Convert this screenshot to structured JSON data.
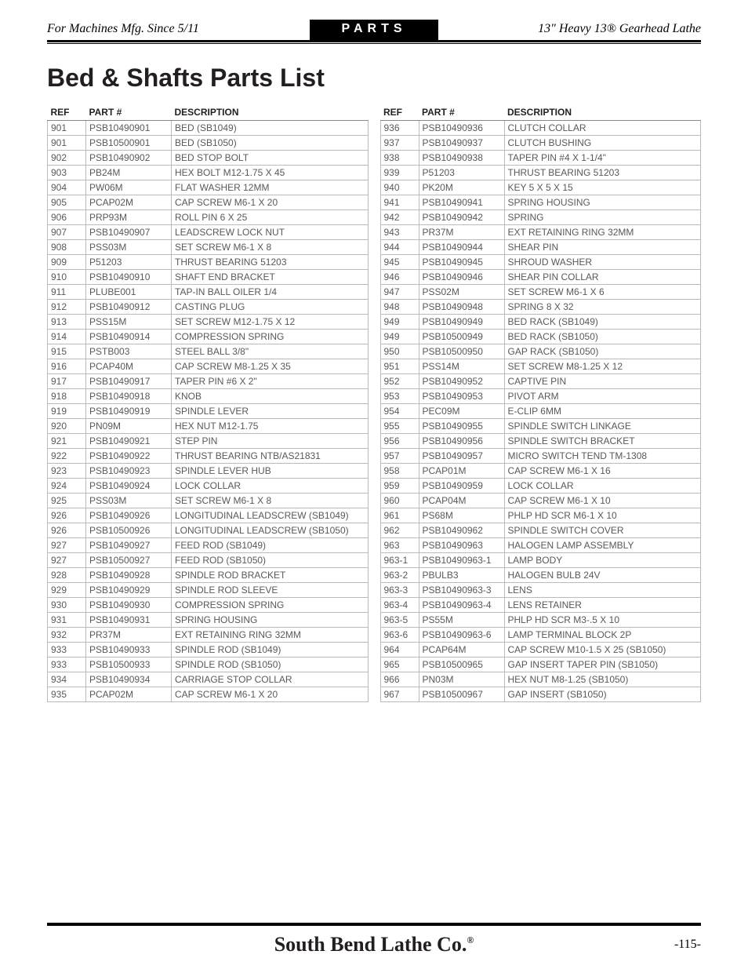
{
  "header": {
    "left": "For Machines Mfg. Since 5/11",
    "center": "PARTS",
    "right": "13\" Heavy 13® Gearhead Lathe"
  },
  "title": "Bed & Shafts Parts List",
  "columns": {
    "ref": "REF",
    "part": "PART #",
    "desc": "DESCRIPTION"
  },
  "left_table": [
    {
      "ref": "901",
      "part": "PSB10490901",
      "desc": "BED (SB1049)"
    },
    {
      "ref": "901",
      "part": "PSB10500901",
      "desc": "BED (SB1050)"
    },
    {
      "ref": "902",
      "part": "PSB10490902",
      "desc": "BED STOP BOLT"
    },
    {
      "ref": "903",
      "part": "PB24M",
      "desc": "HEX BOLT M12-1.75 X 45"
    },
    {
      "ref": "904",
      "part": "PW06M",
      "desc": "FLAT WASHER 12MM"
    },
    {
      "ref": "905",
      "part": "PCAP02M",
      "desc": "CAP SCREW M6-1 X 20"
    },
    {
      "ref": "906",
      "part": "PRP93M",
      "desc": "ROLL PIN 6 X 25"
    },
    {
      "ref": "907",
      "part": "PSB10490907",
      "desc": "LEADSCREW LOCK NUT"
    },
    {
      "ref": "908",
      "part": "PSS03M",
      "desc": "SET SCREW M6-1 X 8"
    },
    {
      "ref": "909",
      "part": "P51203",
      "desc": "THRUST BEARING 51203"
    },
    {
      "ref": "910",
      "part": "PSB10490910",
      "desc": "SHAFT END BRACKET"
    },
    {
      "ref": "911",
      "part": "PLUBE001",
      "desc": "TAP-IN BALL OILER 1/4"
    },
    {
      "ref": "912",
      "part": "PSB10490912",
      "desc": "CASTING PLUG"
    },
    {
      "ref": "913",
      "part": "PSS15M",
      "desc": "SET SCREW M12-1.75 X 12"
    },
    {
      "ref": "914",
      "part": "PSB10490914",
      "desc": "COMPRESSION SPRING"
    },
    {
      "ref": "915",
      "part": "PSTB003",
      "desc": "STEEL BALL 3/8\""
    },
    {
      "ref": "916",
      "part": "PCAP40M",
      "desc": "CAP SCREW M8-1.25 X 35"
    },
    {
      "ref": "917",
      "part": "PSB10490917",
      "desc": "TAPER PIN #6 X 2\""
    },
    {
      "ref": "918",
      "part": "PSB10490918",
      "desc": "KNOB"
    },
    {
      "ref": "919",
      "part": "PSB10490919",
      "desc": "SPINDLE LEVER"
    },
    {
      "ref": "920",
      "part": "PN09M",
      "desc": "HEX NUT M12-1.75"
    },
    {
      "ref": "921",
      "part": "PSB10490921",
      "desc": "STEP PIN"
    },
    {
      "ref": "922",
      "part": "PSB10490922",
      "desc": "THRUST BEARING NTB/AS21831"
    },
    {
      "ref": "923",
      "part": "PSB10490923",
      "desc": "SPINDLE LEVER HUB"
    },
    {
      "ref": "924",
      "part": "PSB10490924",
      "desc": "LOCK COLLAR"
    },
    {
      "ref": "925",
      "part": "PSS03M",
      "desc": "SET SCREW M6-1 X 8"
    },
    {
      "ref": "926",
      "part": "PSB10490926",
      "desc": "LONGITUDINAL LEADSCREW (SB1049)"
    },
    {
      "ref": "926",
      "part": "PSB10500926",
      "desc": "LONGITUDINAL LEADSCREW (SB1050)"
    },
    {
      "ref": "927",
      "part": "PSB10490927",
      "desc": "FEED ROD (SB1049)"
    },
    {
      "ref": "927",
      "part": "PSB10500927",
      "desc": "FEED ROD (SB1050)"
    },
    {
      "ref": "928",
      "part": "PSB10490928",
      "desc": "SPINDLE ROD BRACKET"
    },
    {
      "ref": "929",
      "part": "PSB10490929",
      "desc": "SPINDLE ROD SLEEVE"
    },
    {
      "ref": "930",
      "part": "PSB10490930",
      "desc": "COMPRESSION SPRING"
    },
    {
      "ref": "931",
      "part": "PSB10490931",
      "desc": "SPRING HOUSING"
    },
    {
      "ref": "932",
      "part": "PR37M",
      "desc": "EXT RETAINING RING 32MM"
    },
    {
      "ref": "933",
      "part": "PSB10490933",
      "desc": "SPINDLE ROD (SB1049)"
    },
    {
      "ref": "933",
      "part": "PSB10500933",
      "desc": "SPINDLE ROD (SB1050)"
    },
    {
      "ref": "934",
      "part": "PSB10490934",
      "desc": "CARRIAGE STOP COLLAR"
    },
    {
      "ref": "935",
      "part": "PCAP02M",
      "desc": "CAP SCREW M6-1 X 20"
    }
  ],
  "right_table": [
    {
      "ref": "936",
      "part": "PSB10490936",
      "desc": "CLUTCH COLLAR"
    },
    {
      "ref": "937",
      "part": "PSB10490937",
      "desc": "CLUTCH BUSHING"
    },
    {
      "ref": "938",
      "part": "PSB10490938",
      "desc": "TAPER PIN #4 X 1-1/4\""
    },
    {
      "ref": "939",
      "part": "P51203",
      "desc": "THRUST BEARING 51203"
    },
    {
      "ref": "940",
      "part": "PK20M",
      "desc": "KEY 5 X 5 X 15"
    },
    {
      "ref": "941",
      "part": "PSB10490941",
      "desc": "SPRING HOUSING"
    },
    {
      "ref": "942",
      "part": "PSB10490942",
      "desc": "SPRING"
    },
    {
      "ref": "943",
      "part": "PR37M",
      "desc": "EXT RETAINING RING 32MM"
    },
    {
      "ref": "944",
      "part": "PSB10490944",
      "desc": "SHEAR PIN"
    },
    {
      "ref": "945",
      "part": "PSB10490945",
      "desc": "SHROUD WASHER"
    },
    {
      "ref": "946",
      "part": "PSB10490946",
      "desc": "SHEAR PIN COLLAR"
    },
    {
      "ref": "947",
      "part": "PSS02M",
      "desc": "SET SCREW M6-1 X 6"
    },
    {
      "ref": "948",
      "part": "PSB10490948",
      "desc": "SPRING 8 X 32"
    },
    {
      "ref": "949",
      "part": "PSB10490949",
      "desc": "BED RACK (SB1049)"
    },
    {
      "ref": "949",
      "part": "PSB10500949",
      "desc": "BED RACK (SB1050)"
    },
    {
      "ref": "950",
      "part": "PSB10500950",
      "desc": "GAP RACK (SB1050)"
    },
    {
      "ref": "951",
      "part": "PSS14M",
      "desc": "SET SCREW M8-1.25 X 12"
    },
    {
      "ref": "952",
      "part": "PSB10490952",
      "desc": "CAPTIVE PIN"
    },
    {
      "ref": "953",
      "part": "PSB10490953",
      "desc": "PIVOT ARM"
    },
    {
      "ref": "954",
      "part": "PEC09M",
      "desc": "E-CLIP 6MM"
    },
    {
      "ref": "955",
      "part": "PSB10490955",
      "desc": "SPINDLE SWITCH LINKAGE"
    },
    {
      "ref": "956",
      "part": "PSB10490956",
      "desc": "SPINDLE SWITCH BRACKET"
    },
    {
      "ref": "957",
      "part": "PSB10490957",
      "desc": "MICRO SWITCH TEND TM-1308"
    },
    {
      "ref": "958",
      "part": "PCAP01M",
      "desc": "CAP SCREW M6-1 X 16"
    },
    {
      "ref": "959",
      "part": "PSB10490959",
      "desc": "LOCK COLLAR"
    },
    {
      "ref": "960",
      "part": "PCAP04M",
      "desc": "CAP SCREW M6-1 X 10"
    },
    {
      "ref": "961",
      "part": "PS68M",
      "desc": "PHLP HD SCR M6-1 X 10"
    },
    {
      "ref": "962",
      "part": "PSB10490962",
      "desc": "SPINDLE SWITCH COVER"
    },
    {
      "ref": "963",
      "part": "PSB10490963",
      "desc": "HALOGEN LAMP ASSEMBLY"
    },
    {
      "ref": "963-1",
      "part": "PSB10490963-1",
      "desc": "LAMP BODY"
    },
    {
      "ref": "963-2",
      "part": "PBULB3",
      "desc": "HALOGEN BULB 24V"
    },
    {
      "ref": "963-3",
      "part": "PSB10490963-3",
      "desc": "LENS"
    },
    {
      "ref": "963-4",
      "part": "PSB10490963-4",
      "desc": "LENS RETAINER"
    },
    {
      "ref": "963-5",
      "part": "PS55M",
      "desc": "PHLP HD SCR M3-.5 X 10"
    },
    {
      "ref": "963-6",
      "part": "PSB10490963-6",
      "desc": "LAMP TERMINAL BLOCK 2P"
    },
    {
      "ref": "964",
      "part": "PCAP64M",
      "desc": "CAP SCREW M10-1.5 X 25 (SB1050)"
    },
    {
      "ref": "965",
      "part": "PSB10500965",
      "desc": "GAP INSERT TAPER PIN (SB1050)"
    },
    {
      "ref": "966",
      "part": "PN03M",
      "desc": "HEX NUT M8-1.25 (SB1050)"
    },
    {
      "ref": "967",
      "part": "PSB10500967",
      "desc": "GAP INSERT (SB1050)"
    }
  ],
  "footer": {
    "brand": "South Bend Lathe Co.",
    "page": "-115-"
  }
}
